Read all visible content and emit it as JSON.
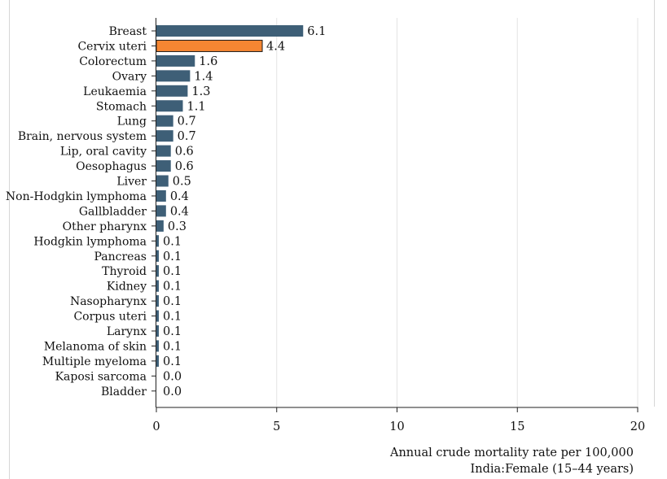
{
  "chart_data": {
    "type": "bar",
    "orientation": "horizontal",
    "categories": [
      "Breast",
      "Cervix uteri",
      "Colorectum",
      "Ovary",
      "Leukaemia",
      "Stomach",
      "Lung",
      "Brain, nervous system",
      "Lip, oral cavity",
      "Oesophagus",
      "Liver",
      "Non-Hodgkin lymphoma",
      "Gallbladder",
      "Other pharynx",
      "Hodgkin lymphoma",
      "Pancreas",
      "Thyroid",
      "Kidney",
      "Nasopharynx",
      "Corpus uteri",
      "Larynx",
      "Melanoma of skin",
      "Multiple myeloma",
      "Kaposi sarcoma",
      "Bladder"
    ],
    "values": [
      6.1,
      4.4,
      1.6,
      1.4,
      1.3,
      1.1,
      0.7,
      0.7,
      0.6,
      0.6,
      0.5,
      0.4,
      0.4,
      0.3,
      0.1,
      0.1,
      0.1,
      0.1,
      0.1,
      0.1,
      0.1,
      0.1,
      0.1,
      0.0,
      0.0
    ],
    "value_labels": [
      "6.1",
      "4.4",
      "1.6",
      "1.4",
      "1.3",
      "1.1",
      "0.7",
      "0.7",
      "0.6",
      "0.6",
      "0.5",
      "0.4",
      "0.4",
      "0.3",
      "0.1",
      "0.1",
      "0.1",
      "0.1",
      "0.1",
      "0.1",
      "0.1",
      "0.1",
      "0.1",
      "0.0",
      "0.0"
    ],
    "highlight_category": "Cervix uteri",
    "xlim": [
      0,
      20
    ],
    "xticks": [
      0,
      5,
      10,
      15,
      20
    ],
    "xtick_labels": [
      "0",
      "5",
      "10",
      "15",
      "20"
    ],
    "xlabel_lines": [
      "Annual crude mortality rate per 100,000",
      "India:Female (15–44 years)"
    ],
    "grid": "vertical lines at x ticks",
    "colors": {
      "bar": "#3e5f77",
      "highlight": "#f58632",
      "grid": "#e3e3e3",
      "axis": "#222222",
      "bar_outline": "#1a1a1a"
    }
  }
}
